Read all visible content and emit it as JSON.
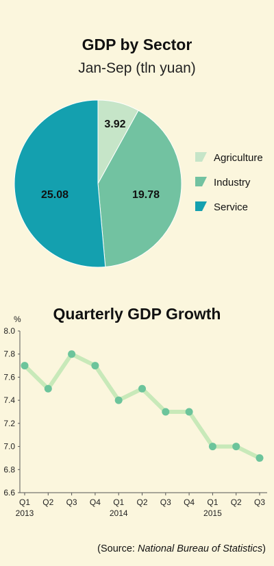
{
  "colors": {
    "background": "#fbf6dd",
    "agriculture": "#c6e5c8",
    "industry": "#72c2a1",
    "service": "#14a0af",
    "line": "#c8e9b9",
    "marker": "#6cc49b",
    "axis": "#555555"
  },
  "chart_data": [
    {
      "type": "pie",
      "title": "GDP by Sector",
      "subtitle": "Jan-Sep (tln yuan)",
      "slices": [
        {
          "label": "Agriculture",
          "value": 3.92,
          "display": "3.92",
          "color": "#c6e5c8"
        },
        {
          "label": "Industry",
          "value": 19.78,
          "display": "19.78",
          "color": "#72c2a1"
        },
        {
          "label": "Service",
          "value": 25.08,
          "display": "25.08",
          "color": "#14a0af"
        }
      ],
      "legend_placement": "right"
    },
    {
      "type": "line",
      "title": "Quarterly GDP Growth",
      "ylabel": "%",
      "ylim": [
        6.6,
        8.0
      ],
      "yticks": [
        "8.0",
        "7.8",
        "7.6",
        "7.4",
        "7.2",
        "7.0",
        "6.8",
        "6.6"
      ],
      "categories": [
        "Q1",
        "Q2",
        "Q3",
        "Q4",
        "Q1",
        "Q2",
        "Q3",
        "Q4",
        "Q1",
        "Q2",
        "Q3"
      ],
      "years": [
        {
          "label": "2013",
          "index": 0
        },
        {
          "label": "2014",
          "index": 4
        },
        {
          "label": "2015",
          "index": 8
        }
      ],
      "values": [
        7.7,
        7.5,
        7.8,
        7.7,
        7.4,
        7.5,
        7.3,
        7.3,
        7.0,
        7.0,
        6.9
      ],
      "grid": false
    }
  ],
  "source": {
    "prefix": "(Source: ",
    "name": "National Bureau of Statistics",
    "suffix": ")"
  }
}
